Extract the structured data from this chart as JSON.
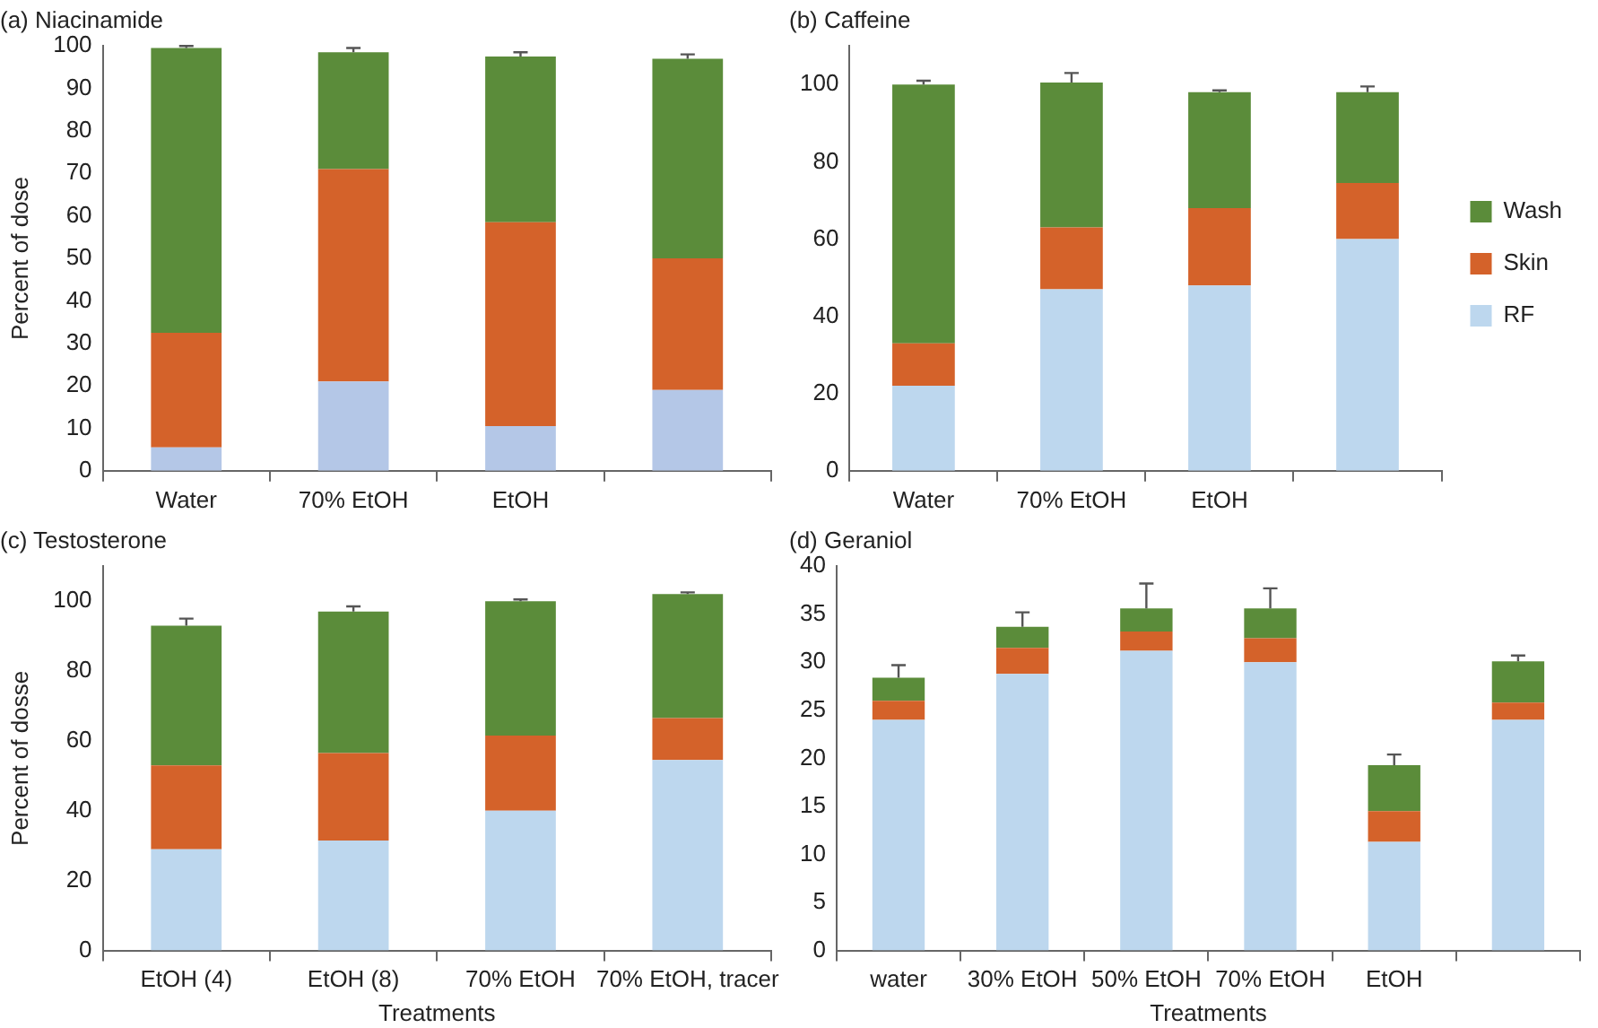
{
  "chart_data": [
    {
      "type": "bar",
      "title": "(a) Niacinamide",
      "ylabel": "Percent of dose",
      "categories": [
        "Water",
        "70% EtOH",
        "EtOH",
        null
      ],
      "stacked": true,
      "ylim": [
        0,
        100
      ],
      "yticks": [
        0,
        10,
        20,
        30,
        40,
        50,
        60,
        70,
        80,
        90,
        100
      ],
      "grid": false,
      "legend": false,
      "series": [
        {
          "color": "#b4c7e7",
          "values": [
            5.5,
            21,
            10.5,
            19
          ]
        },
        {
          "color": "#d4622a",
          "values": [
            27,
            50,
            48,
            31
          ]
        },
        {
          "color": "#5b8c3a",
          "values": [
            67,
            27.5,
            39,
            47
          ],
          "errors": [
            0.5,
            1,
            1,
            1
          ]
        }
      ]
    },
    {
      "type": "bar",
      "title": "(b) Caffeine",
      "categories": [
        "Water",
        "70% EtOH",
        "EtOH",
        null
      ],
      "stacked": true,
      "ylim": [
        0,
        110
      ],
      "yticks": [
        0,
        20,
        40,
        60,
        80,
        100
      ],
      "grid": false,
      "legend": "right",
      "series": [
        {
          "name": "RF",
          "color": "#bdd7ee",
          "values": [
            22,
            47,
            48,
            60
          ]
        },
        {
          "name": "Skin",
          "color": "#d4622a",
          "values": [
            11,
            16,
            20,
            14.5
          ]
        },
        {
          "name": "Wash",
          "color": "#5b8c3a",
          "values": [
            67,
            37.5,
            30,
            23.5
          ],
          "errors": [
            1,
            2.5,
            0.5,
            1.5
          ]
        }
      ]
    },
    {
      "type": "bar",
      "title": "(c) Testosterone",
      "xlabel": "Treatments",
      "ylabel": "Percent of dosse",
      "categories": [
        "EtOH (4)",
        "EtOH (8)",
        "70% EtOH",
        "70% EtOH, tracer"
      ],
      "stacked": true,
      "ylim": [
        0,
        110
      ],
      "yticks": [
        0,
        20,
        40,
        60,
        80,
        100
      ],
      "grid": false,
      "legend": false,
      "series": [
        {
          "color": "#bdd7ee",
          "values": [
            29,
            31.5,
            40,
            54.5
          ]
        },
        {
          "color": "#d4622a",
          "values": [
            24,
            25,
            21.5,
            12
          ]
        },
        {
          "color": "#5b8c3a",
          "values": [
            40,
            40.5,
            38.5,
            35.5
          ],
          "errors": [
            2,
            1.5,
            0.5,
            0.5
          ]
        }
      ]
    },
    {
      "type": "bar",
      "title": "(d) Geraniol",
      "xlabel": "Treatments",
      "categories": [
        "water",
        "30% EtOH",
        "50% EtOH",
        "70% EtOH",
        "EtOH",
        null
      ],
      "stacked": true,
      "ylim": [
        0,
        40
      ],
      "yticks": [
        0,
        5,
        10,
        15,
        20,
        25,
        30,
        35,
        40
      ],
      "grid": false,
      "legend": false,
      "series": [
        {
          "color": "#bdd7ee",
          "values": [
            24,
            28.8,
            31.2,
            30,
            11.3,
            24
          ]
        },
        {
          "color": "#d4622a",
          "values": [
            2,
            2.7,
            2,
            2.5,
            3.2,
            1.8
          ]
        },
        {
          "color": "#5b8c3a",
          "values": [
            2.4,
            2.2,
            2.4,
            3.1,
            4.8,
            4.3
          ],
          "errors": [
            1.3,
            1.5,
            2.6,
            2.1,
            1.1,
            0.6
          ]
        }
      ]
    }
  ]
}
